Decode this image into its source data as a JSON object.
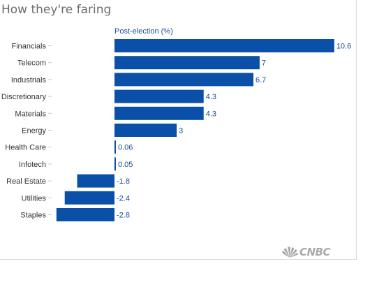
{
  "chart_data": {
    "type": "bar",
    "orientation": "horizontal",
    "title": "How they're faring",
    "series_label": "Post-election (%)",
    "categories": [
      "Financials",
      "Telecom",
      "Industrials",
      "Discretionary",
      "Materials",
      "Energy",
      "Health Care",
      "Infotech",
      "Real Estate",
      "Utilities",
      "Staples"
    ],
    "values": [
      10.6,
      7,
      6.7,
      4.3,
      4.3,
      3,
      0.06,
      0.05,
      -1.8,
      -2.4,
      -2.8
    ],
    "value_labels": [
      "10.6",
      "7",
      "6.7",
      "4.3",
      "4.3",
      "3",
      "0.06",
      "0.05",
      "-1.8",
      "-2.4",
      "-2.8"
    ],
    "xlim": [
      -2.8,
      10.6
    ],
    "grid": false,
    "bar_color": "#0a4fa8"
  },
  "branding": {
    "logo_text": "CNBC"
  },
  "colors": {
    "bar": "#0a4fa8",
    "text": "#333333",
    "value": "#1a4f96"
  }
}
